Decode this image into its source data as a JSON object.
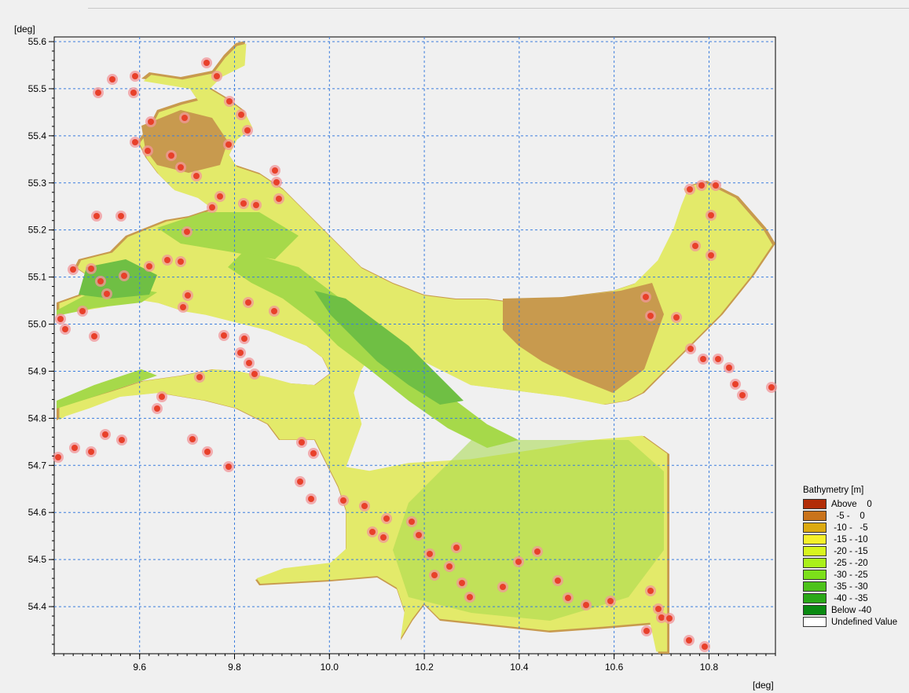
{
  "map": {
    "y_unit": "[deg]",
    "x_unit": "[deg]",
    "x_ticks": [
      "9.6",
      "9.8",
      "10.0",
      "10.2",
      "10.4",
      "10.6",
      "10.8"
    ],
    "x_tick_values": [
      9.6,
      9.8,
      10.0,
      10.2,
      10.4,
      10.6,
      10.8
    ],
    "y_ticks": [
      "55.6",
      "55.5",
      "55.4",
      "55.3",
      "55.2",
      "55.1",
      "55.0",
      "54.9",
      "54.8",
      "54.7",
      "54.6",
      "54.5",
      "54.4"
    ],
    "y_tick_values": [
      55.6,
      55.5,
      55.4,
      55.3,
      55.2,
      55.1,
      55.0,
      54.9,
      54.8,
      54.7,
      54.6,
      54.5,
      54.4
    ],
    "x_range": [
      9.42,
      10.94
    ],
    "y_range": [
      54.3,
      55.61
    ],
    "grid": true,
    "grid_color": "#3b7ddd",
    "land_color": "#f0f0f0"
  },
  "legend": {
    "title": "Bathymetry [m]",
    "items": [
      {
        "label": "Above    0",
        "color": "#b22d07"
      },
      {
        "label": "  -5 -    0",
        "color": "#c9731b"
      },
      {
        "label": " -10 -   -5",
        "color": "#dcaa10"
      },
      {
        "label": " -15 - -10",
        "color": "#f5f02a"
      },
      {
        "label": " -20 - -15",
        "color": "#d8f51e"
      },
      {
        "label": " -25 - -20",
        "color": "#aaf01a"
      },
      {
        "label": " -30 - -25",
        "color": "#7ce01a"
      },
      {
        "label": " -35 - -30",
        "color": "#4cc21a"
      },
      {
        "label": " -40 - -35",
        "color": "#2aa818"
      },
      {
        "label": "Below -40",
        "color": "#0a8a12"
      },
      {
        "label": "Undefined Value",
        "color": "#ffffff"
      }
    ]
  },
  "water": {
    "deep_color": "#6fbf44",
    "mid_color": "#a6d94a",
    "shallow_color": "#e3ea6a",
    "shore_color": "#c89a4e"
  },
  "markers": {
    "color": "#e8402a",
    "halo_color": "#f2959a"
  }
}
